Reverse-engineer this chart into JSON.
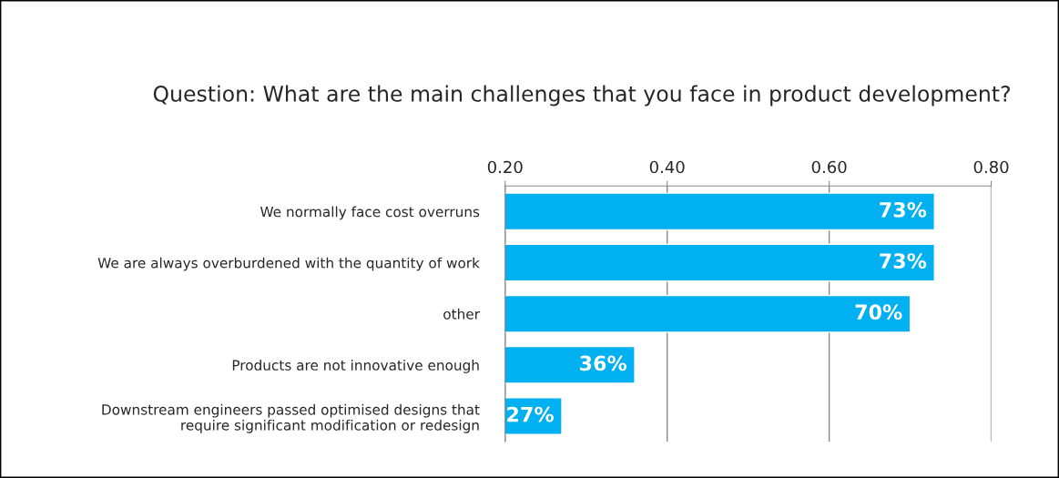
{
  "chart_data": {
    "type": "bar",
    "orientation": "horizontal",
    "title": "Question: What are the main challenges that you face in product development?",
    "categories": [
      "We normally face cost overruns",
      "We are always overburdened with the quantity of work",
      "other",
      "Products are not innovative enough",
      "Downstream engineers passed optimised designs that\nrequire significant modification or redesign"
    ],
    "values": [
      0.73,
      0.73,
      0.7,
      0.36,
      0.27
    ],
    "value_labels": [
      "73%",
      "73%",
      "70%",
      "36%",
      "27%"
    ],
    "color": "#00b0f0",
    "xlim": [
      0.2,
      0.8
    ],
    "xticks": [
      {
        "value": 0.2,
        "label": "0.20"
      },
      {
        "value": 0.4,
        "label": "0.40"
      },
      {
        "value": 0.6,
        "label": "0.60"
      },
      {
        "value": 0.8,
        "label": "0.80"
      }
    ],
    "grid": "x"
  }
}
